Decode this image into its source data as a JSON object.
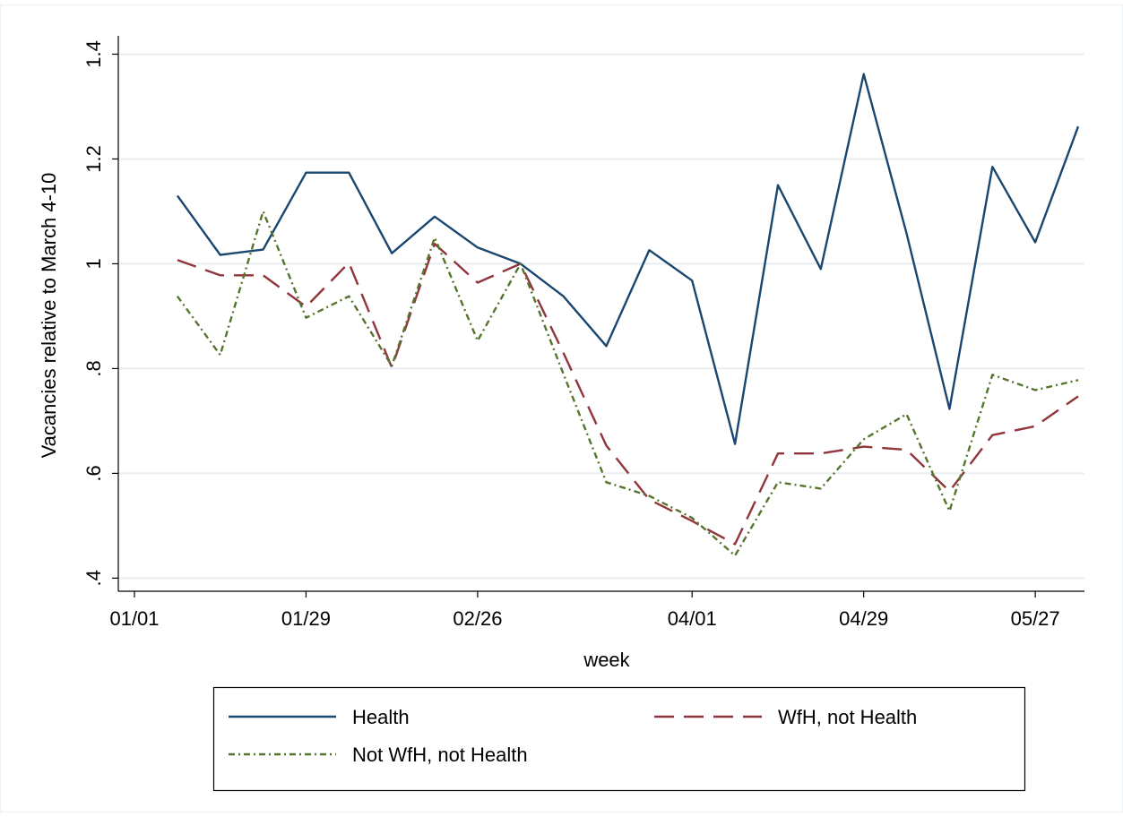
{
  "chart_data": {
    "type": "line",
    "x_label": "week",
    "y_label": "Vacancies relative to March 4-10",
    "x": [
      "01/08",
      "01/15",
      "01/22",
      "01/29",
      "02/05",
      "02/12",
      "02/19",
      "02/26",
      "03/04",
      "03/11",
      "03/18",
      "03/25",
      "04/01",
      "04/08",
      "04/15",
      "04/22",
      "04/29",
      "05/06",
      "05/13",
      "05/20",
      "05/27",
      "06/03"
    ],
    "series": [
      {
        "name": "Health",
        "color": "#1a476f",
        "dash": "solid",
        "values": [
          1.13,
          1.017,
          1.027,
          1.174,
          1.174,
          1.02,
          1.09,
          1.031,
          1.0,
          0.938,
          0.843,
          1.026,
          0.968,
          0.656,
          1.15,
          0.99,
          1.362,
          1.058,
          0.723,
          1.185,
          1.041,
          1.262
        ]
      },
      {
        "name": "WfH, not Health",
        "color": "#90353b",
        "dash": "long-dash",
        "values": [
          1.007,
          0.978,
          0.978,
          0.918,
          1.002,
          0.802,
          1.038,
          0.964,
          1.0,
          0.83,
          0.653,
          0.55,
          0.509,
          0.465,
          0.638,
          0.638,
          0.651,
          0.645,
          0.566,
          0.673,
          0.69,
          0.747
        ]
      },
      {
        "name": "Not WfH, not Health",
        "color": "#55752f",
        "dash": "dash-dot",
        "values": [
          0.938,
          0.826,
          1.1,
          0.897,
          0.938,
          0.805,
          1.05,
          0.853,
          1.0,
          0.79,
          0.583,
          0.557,
          0.515,
          0.443,
          0.583,
          0.571,
          0.665,
          0.713,
          0.528,
          0.788,
          0.759,
          0.778
        ]
      }
    ],
    "xlim": [
      "01/01",
      "06/04"
    ],
    "xticks": [
      "01/01",
      "01/29",
      "02/26",
      "04/01",
      "04/29",
      "05/27"
    ],
    "ylim": [
      0.375,
      1.435
    ],
    "yticks": [
      {
        "value": 0.4,
        "label": ".4"
      },
      {
        "value": 0.6,
        "label": ".6"
      },
      {
        "value": 0.8,
        "label": ".8"
      },
      1,
      1.2,
      1.4
    ],
    "grid": true,
    "legend": "bottom"
  }
}
